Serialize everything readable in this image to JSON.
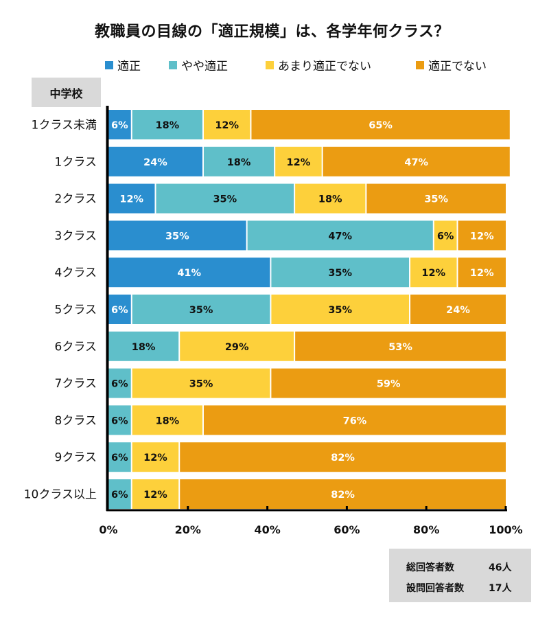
{
  "header": {
    "title": "教職員の目線の「適正規模」は、各学年何クラス？"
  },
  "school_label": "中学校",
  "chart_data": {
    "type": "bar",
    "orientation": "horizontal",
    "stacked": true,
    "title": "教職員の目線の「適正規模」は、各学年何クラス？",
    "xlabel": "",
    "ylabel": "",
    "xlim": [
      0,
      100
    ],
    "x_ticks": [
      "0%",
      "20%",
      "40%",
      "60%",
      "80%",
      "100%"
    ],
    "legend_position": "top",
    "categories": [
      "1クラス未満",
      "1クラス",
      "2クラス",
      "3クラス",
      "4クラス",
      "5クラス",
      "6クラス",
      "7クラス",
      "8クラス",
      "9クラス",
      "10クラス以上"
    ],
    "series": [
      {
        "name": "適正",
        "color": "#2a8ecf",
        "label_color": "#ffffff",
        "values": [
          6,
          24,
          12,
          35,
          41,
          6,
          0,
          0,
          0,
          0,
          0
        ]
      },
      {
        "name": "やや適正",
        "color": "#5fbfc9",
        "label_color": "#111111",
        "values": [
          18,
          18,
          35,
          47,
          35,
          35,
          18,
          6,
          6,
          6,
          6
        ]
      },
      {
        "name": "あまり適正でない",
        "color": "#fdd03b",
        "label_color": "#111111",
        "values": [
          12,
          12,
          18,
          6,
          12,
          35,
          29,
          35,
          18,
          12,
          12
        ]
      },
      {
        "name": "適正でない",
        "color": "#eb9c12",
        "label_color": "#ffffff",
        "values": [
          65,
          47,
          35,
          12,
          12,
          24,
          53,
          59,
          76,
          82,
          82
        ]
      }
    ]
  },
  "stats": [
    {
      "label": "総回答者数",
      "value": "46人"
    },
    {
      "label": "設問回答者数",
      "value": "17人"
    }
  ]
}
